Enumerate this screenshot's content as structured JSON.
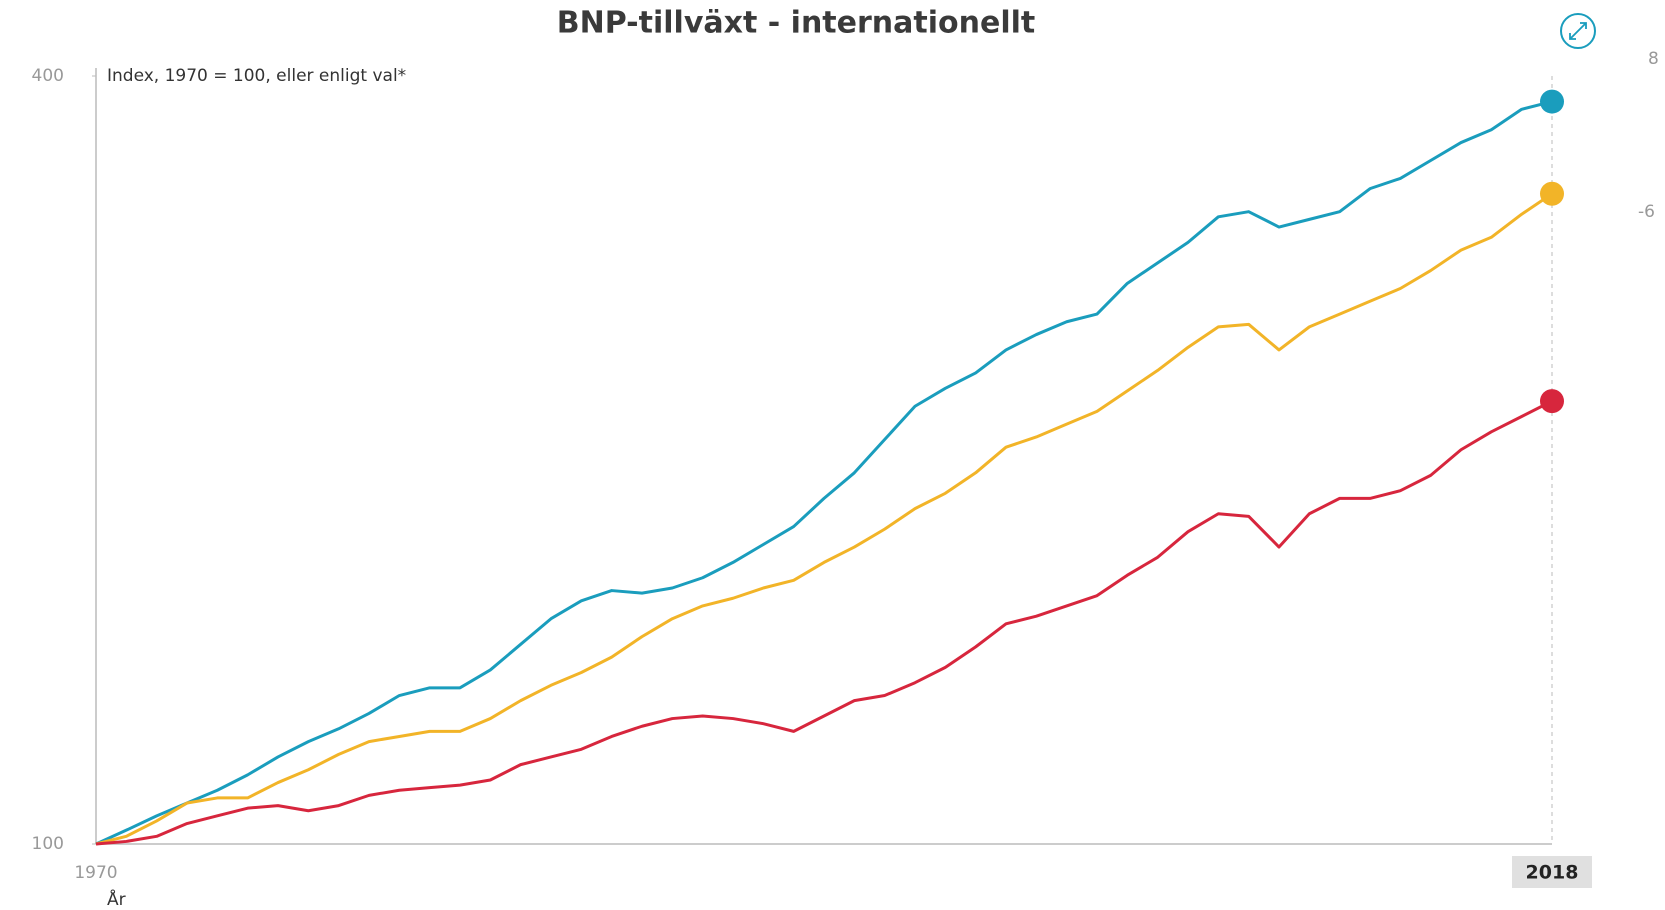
{
  "chart_data": {
    "type": "line",
    "title": "BNP-tillväxt - internationellt",
    "subtitle": "Index, 1970 = 100, eller enligt val*",
    "x_label": "År",
    "edge_labels": [
      "8",
      "-6"
    ],
    "x": [
      1970,
      1971,
      1972,
      1973,
      1974,
      1975,
      1976,
      1977,
      1978,
      1979,
      1980,
      1981,
      1982,
      1983,
      1984,
      1985,
      1986,
      1987,
      1988,
      1989,
      1990,
      1991,
      1992,
      1993,
      1994,
      1995,
      1996,
      1997,
      1998,
      1999,
      2000,
      2001,
      2002,
      2003,
      2004,
      2005,
      2006,
      2007,
      2008,
      2009,
      2010,
      2011,
      2012,
      2013,
      2014,
      2015,
      2016,
      2017,
      2018
    ],
    "xlim": [
      1970,
      2018
    ],
    "xticks": [
      1970,
      2018
    ],
    "highlight_x": 2018,
    "ylim": [
      100,
      400
    ],
    "yticks": [
      100,
      400
    ],
    "series": [
      {
        "color": "#1a9dbd",
        "values": [
          100,
          105.4,
          111,
          116,
          121,
          127,
          134,
          140,
          145,
          151,
          158,
          161,
          161,
          168,
          178,
          188,
          195,
          199,
          198,
          200,
          204,
          210,
          217,
          224,
          235,
          245,
          258,
          271,
          278,
          284,
          293,
          299,
          304,
          307,
          319,
          327,
          335,
          345,
          347,
          341,
          344,
          347,
          356,
          360,
          367,
          374,
          379,
          387,
          390
        ]
      },
      {
        "color": "#f2b428",
        "values": [
          100,
          103,
          109,
          116,
          118,
          118,
          124,
          129,
          135,
          140,
          142,
          144,
          144,
          149,
          156,
          162,
          167,
          173,
          181,
          188,
          193,
          196,
          200,
          203,
          210,
          216,
          223,
          231,
          237,
          245,
          255,
          259,
          264,
          269,
          277,
          285,
          294,
          302,
          303,
          293,
          302,
          307,
          312,
          317,
          324,
          332,
          337,
          346,
          354
        ]
      },
      {
        "color": "#d7263d",
        "values": [
          100,
          101,
          103,
          108,
          111,
          114,
          115,
          113,
          115,
          119,
          121,
          122,
          123,
          125,
          131,
          134,
          137,
          142,
          146,
          149,
          150,
          149,
          147,
          144,
          150,
          156,
          158,
          163,
          169,
          177,
          186,
          189,
          193,
          197,
          205,
          212,
          222,
          229,
          228,
          216,
          229,
          235,
          235,
          238,
          244,
          254,
          261,
          267,
          273
        ]
      }
    ]
  }
}
